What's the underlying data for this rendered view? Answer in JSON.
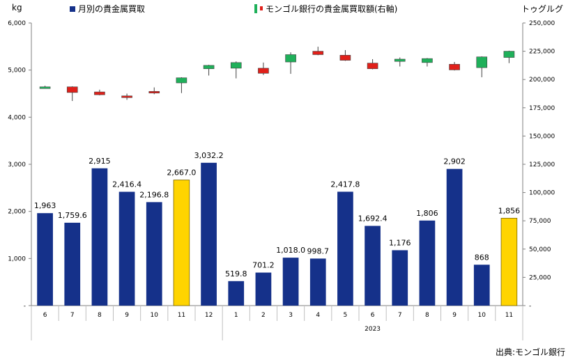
{
  "units": {
    "left": "kg",
    "right": "トゥグルグ"
  },
  "legend": {
    "bars": "月別の貴金属買取",
    "candles": "モンゴル銀行の貴金属買取額(右軸)"
  },
  "source": "出典:モンゴル銀行",
  "colors": {
    "bar": "#15318a",
    "highlight": "#ffd400",
    "up": "#1fb05a",
    "down": "#e0201a"
  },
  "chart_data": {
    "type": "bar",
    "categories": [
      "6",
      "7",
      "8",
      "9",
      "10",
      "11",
      "12",
      "1",
      "2",
      "3",
      "4",
      "5",
      "6",
      "7",
      "8",
      "9",
      "10",
      "11"
    ],
    "year_label": "2023",
    "y_left": {
      "ticks": [
        "-",
        "1,000",
        "2,000",
        "3,000",
        "4,000",
        "5,000",
        "6,000"
      ],
      "ylim": [
        0,
        6000
      ]
    },
    "y_right": {
      "ticks": [
        "-",
        "25,000",
        "50,000",
        "75,000",
        "100,000",
        "125,000",
        "150,000",
        "175,000",
        "200,000",
        "225,000",
        "250,000"
      ],
      "ylim": [
        0,
        250000
      ]
    },
    "series": [
      {
        "name": "月別の貴金属買取",
        "values": [
          1963,
          1759.6,
          2915,
          2416.4,
          2196.8,
          2667.0,
          3032.2,
          519.8,
          701.2,
          1018.0,
          998.7,
          2417.8,
          1692.4,
          1176,
          1806,
          2902,
          868,
          1856
        ],
        "labels": [
          "1,963",
          "1,759.6",
          "2,915",
          "2,416.4",
          "2,196.8",
          "2,667.0",
          "3,032.2",
          "519.8",
          "701.2",
          "1,018.0",
          "998.7",
          "2,417.8",
          "1,692.4",
          "1,176",
          "1,806",
          "2,902",
          "868",
          "1,856"
        ],
        "highlight": [
          false,
          false,
          false,
          false,
          false,
          true,
          false,
          false,
          false,
          false,
          false,
          false,
          false,
          false,
          false,
          false,
          false,
          true
        ]
      },
      {
        "name": "モンゴル銀行の貴金属買取額(右軸)",
        "axis": "right",
        "candles": [
          {
            "o": 192000,
            "c": 193500,
            "h": 194500,
            "l": 191800
          },
          {
            "o": 193500,
            "c": 188500,
            "h": 194000,
            "l": 181000
          },
          {
            "o": 189000,
            "c": 186500,
            "h": 191000,
            "l": 186000
          },
          {
            "o": 185500,
            "c": 184000,
            "h": 187500,
            "l": 182000
          },
          {
            "o": 189500,
            "c": 188000,
            "h": 193000,
            "l": 187000
          },
          {
            "o": 197000,
            "c": 201500,
            "h": 202000,
            "l": 188000
          },
          {
            "o": 209500,
            "c": 212500,
            "h": 213000,
            "l": 203500
          },
          {
            "o": 210000,
            "c": 215000,
            "h": 216000,
            "l": 201000
          },
          {
            "o": 210000,
            "c": 205500,
            "h": 215000,
            "l": 204000
          },
          {
            "o": 215500,
            "c": 222000,
            "h": 224000,
            "l": 205000
          },
          {
            "o": 225000,
            "c": 222000,
            "h": 229000,
            "l": 221500
          },
          {
            "o": 221500,
            "c": 217000,
            "h": 226000,
            "l": 216500
          },
          {
            "o": 214500,
            "c": 209500,
            "h": 218000,
            "l": 209000
          },
          {
            "o": 216000,
            "c": 218000,
            "h": 219500,
            "l": 211500
          },
          {
            "o": 215000,
            "c": 218500,
            "h": 219000,
            "l": 211500
          },
          {
            "o": 213500,
            "c": 208500,
            "h": 215500,
            "l": 208000
          },
          {
            "o": 210500,
            "c": 220000,
            "h": 220500,
            "l": 202000
          },
          {
            "o": 219500,
            "c": 225000,
            "h": 225500,
            "l": 214500
          }
        ]
      }
    ]
  }
}
